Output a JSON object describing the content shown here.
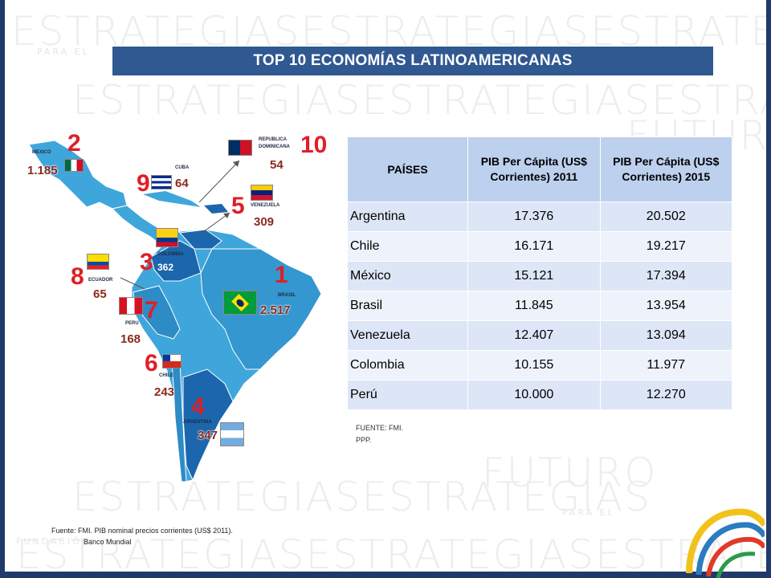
{
  "slide": {
    "title": "TOP 10 ECONOMÍAS LATINOAMERICANAS",
    "watermark": {
      "big": "ESTRATEGIAS",
      "para_el": "PARA EL",
      "futuro": "FUTURO",
      "fundacion": "FUNDACIÓN"
    }
  },
  "map": {
    "countries": [
      {
        "key": "mexico",
        "name": "MEXICO",
        "rank": "2",
        "value": "1.185"
      },
      {
        "key": "cuba",
        "name": "CUBA",
        "rank": "9",
        "value": "64"
      },
      {
        "key": "rep_dominicana",
        "name": "REPUBLICA DOMINICANA",
        "rank": "10",
        "value": "54"
      },
      {
        "key": "venezuela",
        "name": "VENEZUELA",
        "rank": "5",
        "value": "309"
      },
      {
        "key": "colombia",
        "name": "COLOMBIA",
        "rank": "3",
        "value": "362"
      },
      {
        "key": "ecuador",
        "name": "ECUADOR",
        "rank": "8",
        "value": "65"
      },
      {
        "key": "brasil",
        "name": "BRASIL",
        "rank": "1",
        "value": "2.517"
      },
      {
        "key": "peru",
        "name": "PERU",
        "rank": "7",
        "value": "168"
      },
      {
        "key": "chile",
        "name": "CHILE",
        "rank": "6",
        "value": "243"
      },
      {
        "key": "argentina",
        "name": "ARGENTINA",
        "rank": "4",
        "value": "347"
      }
    ],
    "colors": {
      "land": "#3fa6db",
      "land_dark": "#1c66ad",
      "rank": "#e01f26",
      "value": "#8b2a1e"
    }
  },
  "table": {
    "headers": [
      "PAÍSES",
      "PIB Per Cápita (US$ Corrientes) 2011",
      "PIB Per Cápita (US$ Corrientes) 2015"
    ],
    "rows": [
      [
        "Argentina",
        "17.376",
        "20.502"
      ],
      [
        "Chile",
        "16.171",
        "19.217"
      ],
      [
        "México",
        "15.121",
        "17.394"
      ],
      [
        "Brasil",
        "11.845",
        "13.954"
      ],
      [
        "Venezuela",
        "12.407",
        "13.094"
      ],
      [
        "Colombia",
        "10.155",
        "11.977"
      ],
      [
        "Perú",
        "10.000",
        "12.270"
      ]
    ],
    "note_line1": "FUENTE: FMI.",
    "note_line2": "PPP."
  },
  "footer": {
    "line1": "Fuente: FMI. PIB nominal precios corrientes (US$ 2011).",
    "line2": "Banco Mundial"
  }
}
